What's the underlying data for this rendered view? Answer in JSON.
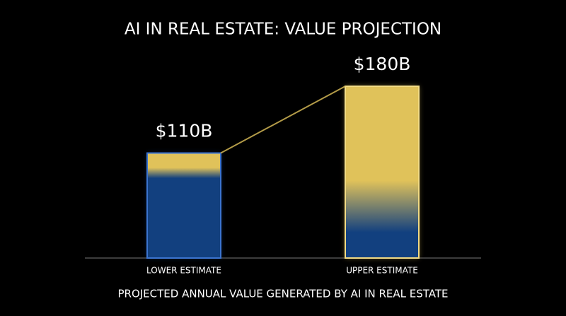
{
  "chart_data": {
    "type": "bar",
    "title": "AI IN REAL ESTATE: VALUE PROJECTION",
    "x_label": "PROJECTED ANNUAL VALUE GENERATED BY AI IN REAL ESTATE",
    "categories": [
      "LOWER ESTIMATE",
      "UPPER ESTIMATE"
    ],
    "values": [
      110,
      180
    ],
    "value_labels": [
      "$110B",
      "$180B"
    ],
    "colors": [
      "#12407f",
      "#e0c25a"
    ]
  }
}
